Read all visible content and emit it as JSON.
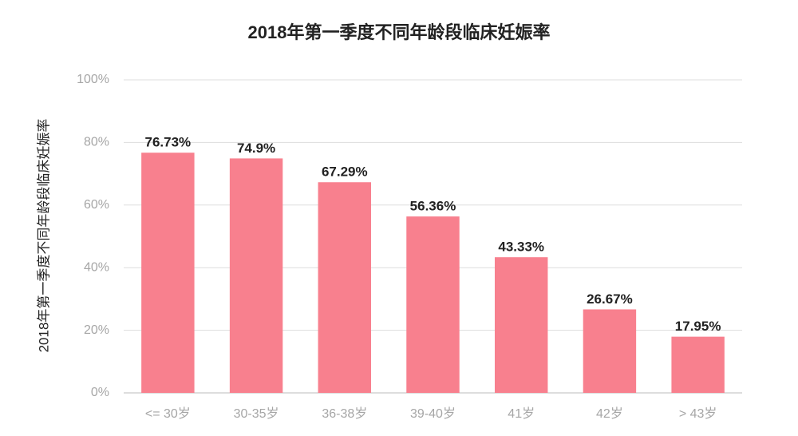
{
  "chart_data": {
    "type": "bar",
    "title": "2018年第一季度不同年龄段临床妊娠率",
    "y_label": "2018年第一季度不同年龄段临床妊娠率",
    "categories": [
      "<= 30岁",
      "30-35岁",
      "36-38岁",
      "39-40岁",
      "41岁",
      "42岁",
      "> 43岁"
    ],
    "values": [
      76.73,
      74.9,
      67.29,
      56.36,
      43.33,
      26.67,
      17.95
    ],
    "value_labels": [
      "76.73%",
      "74.9%",
      "67.29%",
      "56.36%",
      "43.33%",
      "26.67%",
      "17.95%"
    ],
    "color": "#f8808e",
    "ylim": [
      0,
      100
    ],
    "yticks": [
      {
        "value": 0,
        "label": "0%"
      },
      {
        "value": 20,
        "label": "20%"
      },
      {
        "value": 40,
        "label": "40%"
      },
      {
        "value": 60,
        "label": "60%"
      },
      {
        "value": 80,
        "label": "80%"
      },
      {
        "value": 100,
        "label": "100%"
      }
    ],
    "grid": true
  }
}
